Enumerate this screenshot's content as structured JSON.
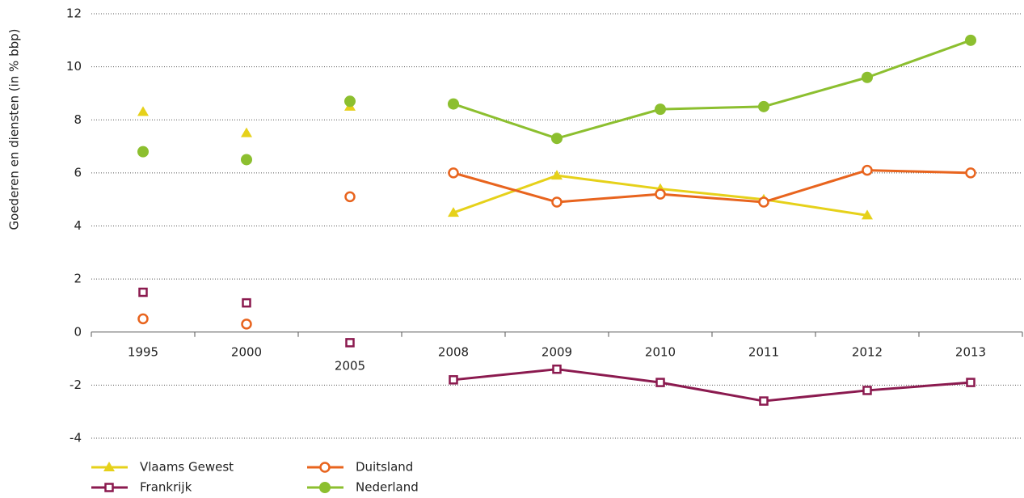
{
  "chart_data": {
    "type": "line",
    "y_label": "Goederen en diensten (in % bbp)",
    "categories": [
      "1995",
      "2000",
      "2005",
      "2008",
      "2009",
      "2010",
      "2011",
      "2012",
      "2013"
    ],
    "series": [
      {
        "name": "Vlaams Gewest",
        "color": "#e6d11a",
        "marker": "triangle",
        "values": [
          8.3,
          7.5,
          8.5,
          4.5,
          5.9,
          5.4,
          5.0,
          4.4,
          null
        ]
      },
      {
        "name": "Duitsland",
        "color": "#e8641e",
        "marker": "open-circle",
        "values": [
          0.5,
          0.3,
          5.1,
          6.0,
          4.9,
          5.2,
          4.9,
          6.1,
          6.0
        ]
      },
      {
        "name": "Frankrijk",
        "color": "#8b1a4f",
        "marker": "open-square",
        "values": [
          1.5,
          1.1,
          -0.4,
          -1.8,
          -1.4,
          -1.9,
          -2.6,
          -2.2,
          -1.9
        ]
      },
      {
        "name": "Nederland",
        "color": "#8cbf2f",
        "marker": "circle",
        "values": [
          6.8,
          6.5,
          8.7,
          8.6,
          7.3,
          8.4,
          8.5,
          9.6,
          11.0
        ]
      }
    ],
    "ylim": [
      -4,
      12
    ],
    "yticks": [
      -4,
      -2,
      0,
      2,
      4,
      6,
      8,
      10,
      12
    ],
    "grid": true
  }
}
